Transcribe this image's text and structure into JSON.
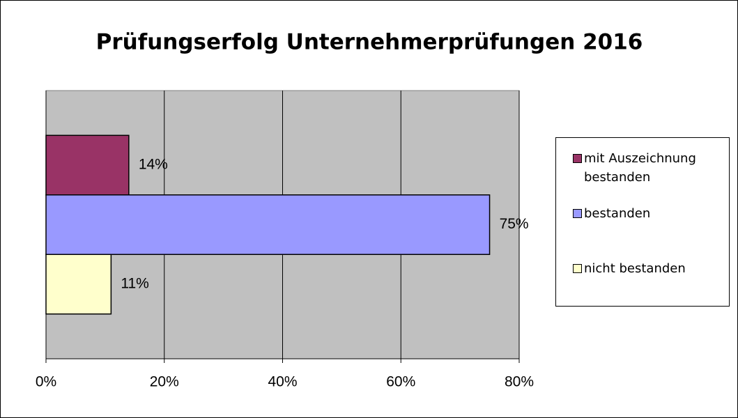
{
  "chart_data": {
    "type": "bar",
    "orientation": "horizontal",
    "title": "Prüfungserfolg Unternehmerprüfungen 2016",
    "categories": [
      null
    ],
    "series": [
      {
        "name": "mit Auszeichnung bestanden",
        "color": "#993366",
        "values": [
          14
        ],
        "value_labels": [
          "14%"
        ]
      },
      {
        "name": "bestanden",
        "color": "#9999ff",
        "values": [
          75
        ],
        "value_labels": [
          "75%"
        ]
      },
      {
        "name": "nicht bestanden",
        "color": "#ffffcc",
        "values": [
          11
        ],
        "value_labels": [
          "11%"
        ]
      }
    ],
    "xlim": [
      0,
      80
    ],
    "xticks": [
      {
        "value": 0,
        "label": "0%"
      },
      {
        "value": 20,
        "label": "20%"
      },
      {
        "value": 40,
        "label": "40%"
      },
      {
        "value": 60,
        "label": "60%"
      },
      {
        "value": 80,
        "label": "80%"
      }
    ],
    "grid": true,
    "legend": "right"
  }
}
